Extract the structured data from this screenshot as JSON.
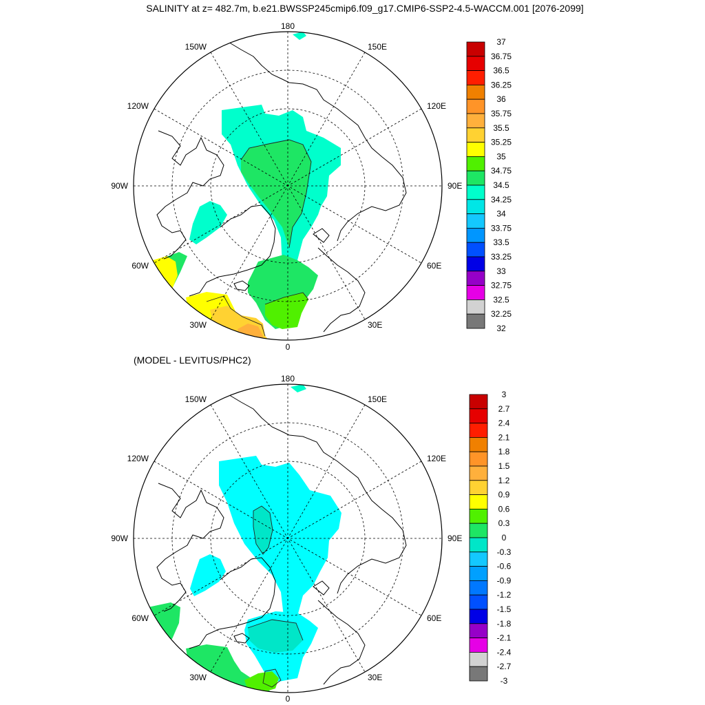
{
  "title": "SALINITY at z= 482.7m, b.e21.BWSSP245cmip6.f09_g17.CMIP6-SSP2-4.5-WACCM.001 [2076-2099]",
  "diff_title": "(MODEL - LEVITUS/PHC2)",
  "lon_labels": {
    "top": "180",
    "bottom": "0",
    "left": "90W",
    "right": "90E",
    "ul_outer": "150W",
    "ul_inner": "120W",
    "ur_outer": "150E",
    "ur_inner": "120E",
    "ll_inner": "60W",
    "ll_outer": "30W",
    "lr_inner": "60E",
    "lr_outer": "30E"
  },
  "colorbar1": {
    "labels": [
      "37",
      "36.75",
      "36.5",
      "36.25",
      "36",
      "35.75",
      "35.5",
      "35.25",
      "35",
      "34.75",
      "34.5",
      "34.25",
      "34",
      "33.75",
      "33.5",
      "33.25",
      "33",
      "32.75",
      "32.5",
      "32.25",
      "32"
    ],
    "colors": [
      "#c80000",
      "#e60000",
      "#ff1e00",
      "#f08000",
      "#ff9428",
      "#ffb03c",
      "#ffd232",
      "#ffff00",
      "#50f000",
      "#1ee664",
      "#00ffcc",
      "#00e6e6",
      "#14c8ff",
      "#0096ff",
      "#0050ff",
      "#0000e6",
      "#9600c8",
      "#e600e6",
      "#d2d2d2",
      "#787878"
    ]
  },
  "colorbar2": {
    "labels": [
      "3",
      "2.7",
      "2.4",
      "2.1",
      "1.8",
      "1.5",
      "1.2",
      "0.9",
      "0.6",
      "0.3",
      "0",
      "-0.3",
      "-0.6",
      "-0.9",
      "-1.2",
      "-1.5",
      "-1.8",
      "-2.1",
      "-2.4",
      "-2.7",
      "-3"
    ],
    "colors": [
      "#c80000",
      "#e60000",
      "#ff1e00",
      "#f08000",
      "#ff9428",
      "#ffb03c",
      "#ffd232",
      "#ffff00",
      "#50f000",
      "#1ee664",
      "#00e6c8",
      "#14c8ff",
      "#00a0ff",
      "#0078ff",
      "#0050ff",
      "#0000e6",
      "#9600c8",
      "#e600e6",
      "#d2d2d2",
      "#787878"
    ]
  },
  "colors": {
    "salinity_green": "#1ee664",
    "salinity_cyan": "#00ffcc",
    "salinity_lime": "#50f000",
    "salinity_yellow": "#ffff00",
    "salinity_gold": "#ffd232",
    "salinity_orange": "#ffb03c",
    "diff_cyan": "#00ffff",
    "diff_teal": "#00e6c8",
    "diff_green": "#1ee664",
    "diff_lime": "#50f000"
  }
}
